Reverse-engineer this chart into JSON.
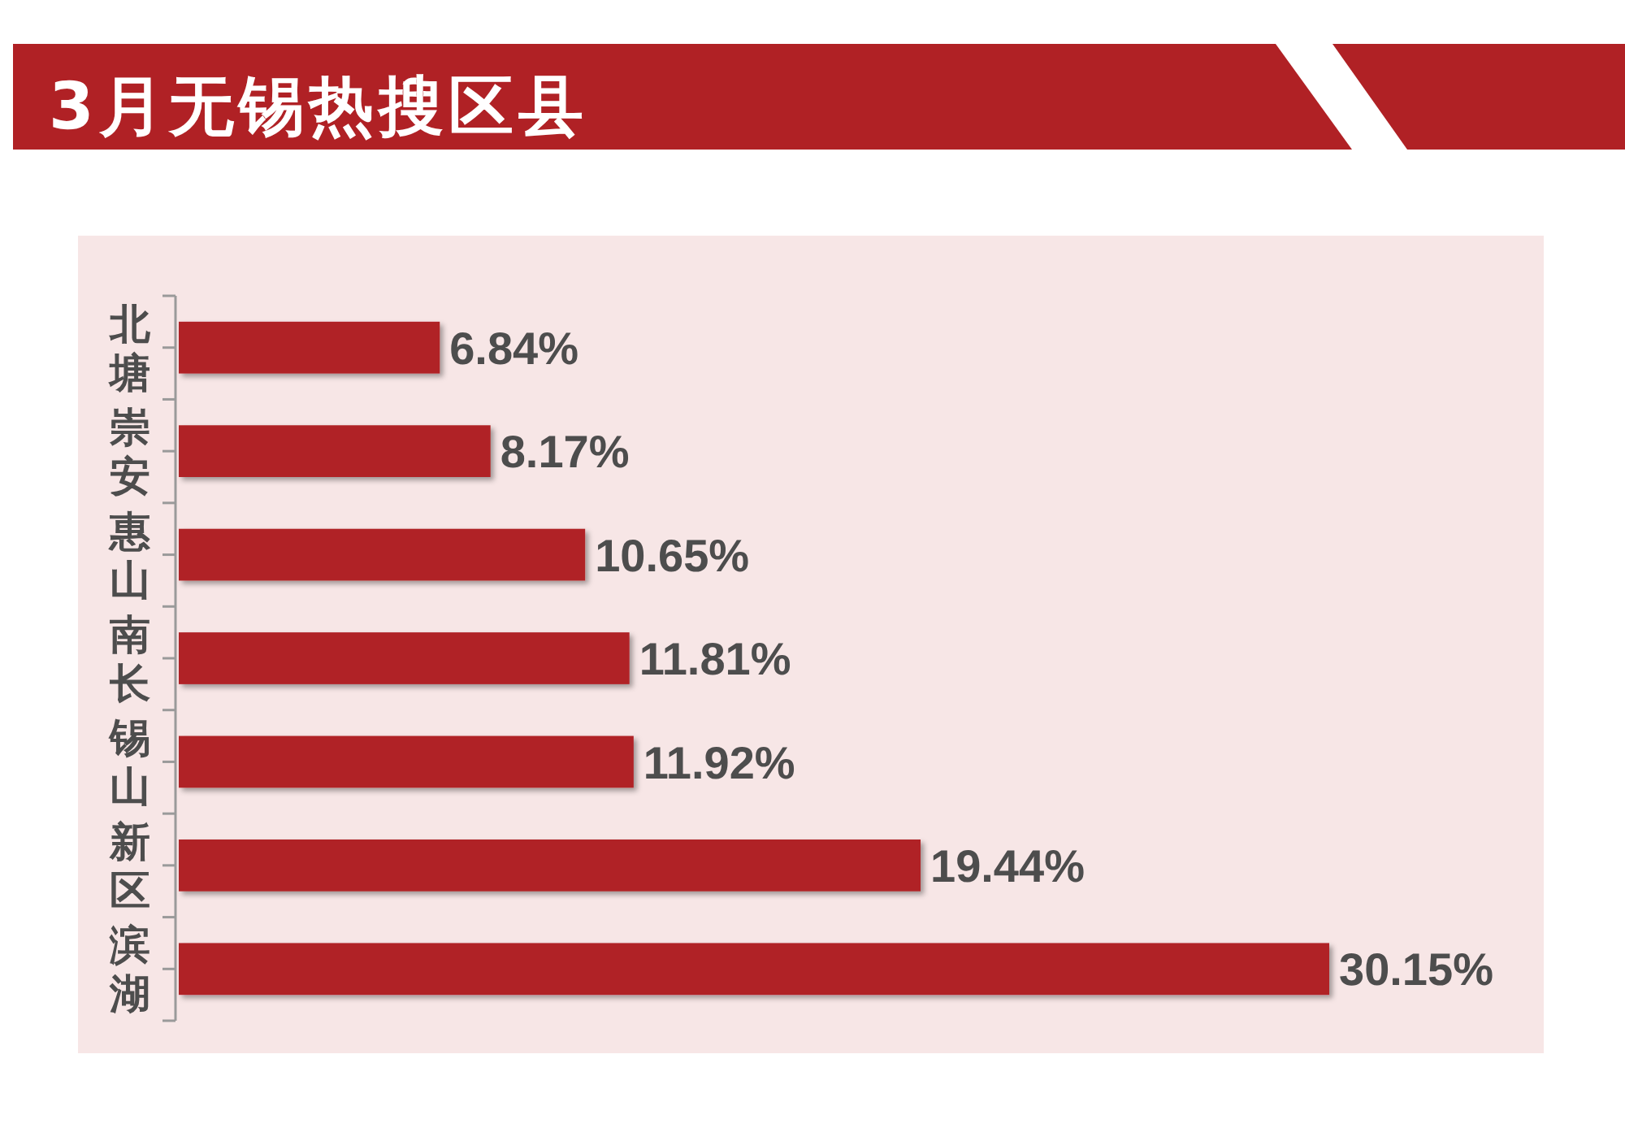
{
  "chart_data": {
    "type": "bar",
    "orientation": "horizontal",
    "title": "3月无锡热搜区县",
    "categories": [
      "北塘",
      "崇安",
      "惠山",
      "南长",
      "锡山",
      "新区",
      "滨湖"
    ],
    "values": [
      6.84,
      8.17,
      10.65,
      11.81,
      11.92,
      19.44,
      30.15
    ],
    "value_labels": [
      "6.84%",
      "8.17%",
      "10.65%",
      "11.81%",
      "11.92%",
      "19.44%",
      "30.15%"
    ],
    "color": "#b02125"
  }
}
